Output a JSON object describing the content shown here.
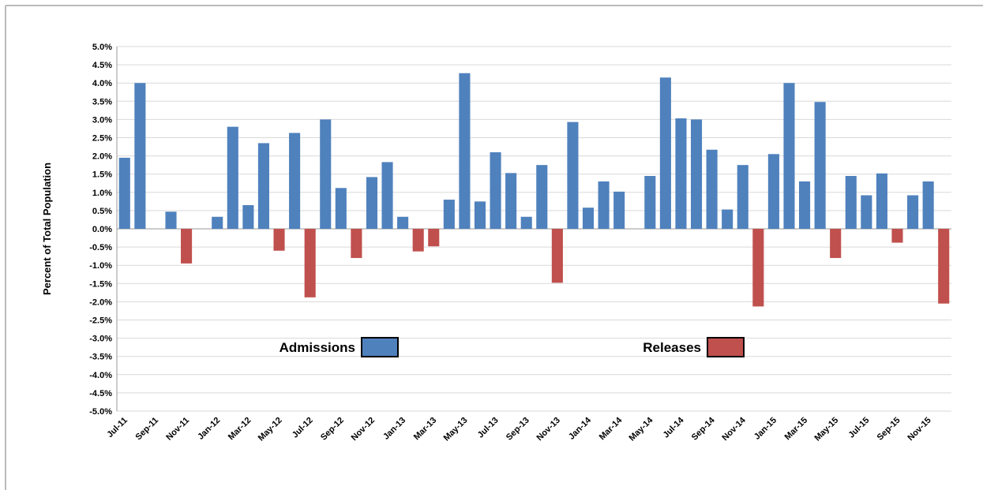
{
  "chart_data": {
    "type": "bar",
    "y_label": "Percent of Total Population",
    "categories": [
      "Jul-11",
      null,
      "Sep-11",
      null,
      "Nov-11",
      null,
      "Jan-12",
      null,
      "Mar-12",
      null,
      "May-12",
      null,
      "Jul-12",
      null,
      "Sep-12",
      null,
      "Nov-12",
      null,
      "Jan-13",
      null,
      "Mar-13",
      null,
      "May-13",
      null,
      "Jul-13",
      null,
      "Sep-13",
      null,
      "Nov-13",
      null,
      "Jan-14",
      null,
      "Mar-14",
      null,
      "May-14",
      null,
      "Jul-14",
      null,
      "Sep-14",
      null,
      "Nov-14",
      null,
      "Jan-15",
      null,
      "Mar-15",
      null,
      "May-15",
      null,
      "Jul-15",
      null,
      "Sep-15",
      null,
      "Nov-15",
      null
    ],
    "series": [
      {
        "name": "Admissions",
        "color": "#4f81bd",
        "values": [
          1.95,
          4.0,
          null,
          0.47,
          null,
          null,
          0.33,
          2.8,
          0.65,
          2.35,
          null,
          2.63,
          null,
          3.0,
          1.12,
          null,
          1.42,
          1.83,
          0.33,
          null,
          null,
          0.8,
          4.27,
          0.75,
          2.1,
          1.53,
          0.33,
          1.75,
          null,
          2.93,
          0.58,
          1.3,
          1.02,
          null,
          1.45,
          4.15,
          3.03,
          3.0,
          2.17,
          0.53,
          1.75,
          null,
          2.05,
          4.0,
          1.3,
          3.48,
          null,
          1.45,
          0.92,
          1.52,
          null,
          0.92,
          1.3,
          null
        ]
      },
      {
        "name": "Releases",
        "color": "#c0504d",
        "values": [
          null,
          null,
          null,
          null,
          -0.95,
          null,
          null,
          null,
          null,
          null,
          -0.6,
          null,
          -1.88,
          null,
          null,
          -0.8,
          null,
          null,
          null,
          -0.62,
          -0.48,
          null,
          null,
          null,
          null,
          null,
          null,
          null,
          -1.48,
          null,
          null,
          null,
          null,
          null,
          null,
          null,
          null,
          null,
          null,
          null,
          null,
          -2.13,
          null,
          null,
          null,
          null,
          -0.8,
          null,
          null,
          null,
          -0.38,
          null,
          null,
          -2.05
        ]
      }
    ],
    "ylim": [
      -5,
      5
    ],
    "yticks": [
      {
        "value": 5,
        "label": "5.0%"
      },
      {
        "value": 4.5,
        "label": "4.5%"
      },
      {
        "value": 4,
        "label": "4.0%"
      },
      {
        "value": 3.5,
        "label": "3.5%"
      },
      {
        "value": 3,
        "label": "3.0%"
      },
      {
        "value": 2.5,
        "label": "2.5%"
      },
      {
        "value": 2,
        "label": "2.0%"
      },
      {
        "value": 1.5,
        "label": "1.5%"
      },
      {
        "value": 1,
        "label": "1.0%"
      },
      {
        "value": 0.5,
        "label": "0.5%"
      },
      {
        "value": 0,
        "label": "0.0%"
      },
      {
        "value": -0.5,
        "label": "-0.5%"
      },
      {
        "value": -1,
        "label": "-1.0%"
      },
      {
        "value": -1.5,
        "label": "-1.5%"
      },
      {
        "value": -2,
        "label": "-2.0%"
      },
      {
        "value": -2.5,
        "label": "-2.5%"
      },
      {
        "value": -3,
        "label": "-3.0%"
      },
      {
        "value": -3.5,
        "label": "-3.5%"
      },
      {
        "value": -4,
        "label": "-4.0%"
      },
      {
        "value": -4.5,
        "label": "-4.5%"
      },
      {
        "value": -5,
        "label": "-5.0%"
      }
    ],
    "grid": true
  }
}
